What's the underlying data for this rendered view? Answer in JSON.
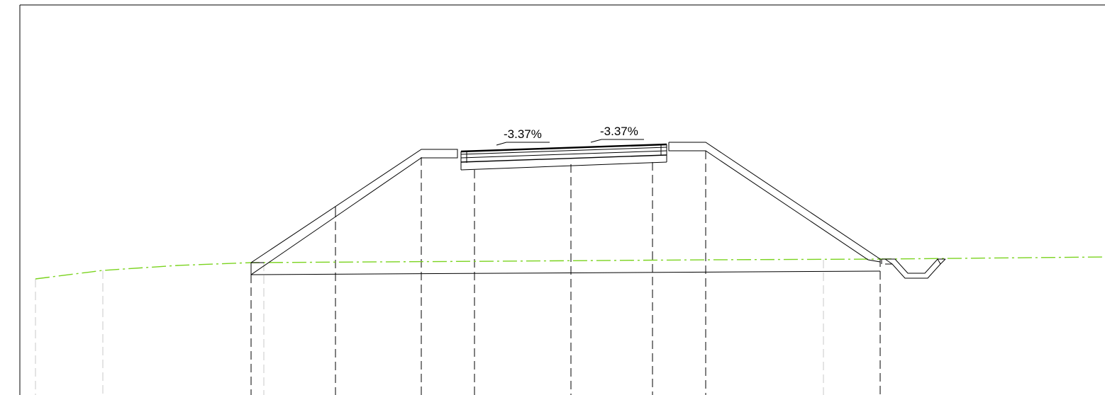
{
  "drawing": {
    "slope_left_label": "-3.37%",
    "slope_right_label": "-3.37%"
  },
  "colors": {
    "background": "#ffffff",
    "frame": "#000000",
    "structure_line": "#000000",
    "ground_line": "#7ad31e",
    "station_line": "#000000",
    "auxiliary_line": "#c8c8c8"
  }
}
